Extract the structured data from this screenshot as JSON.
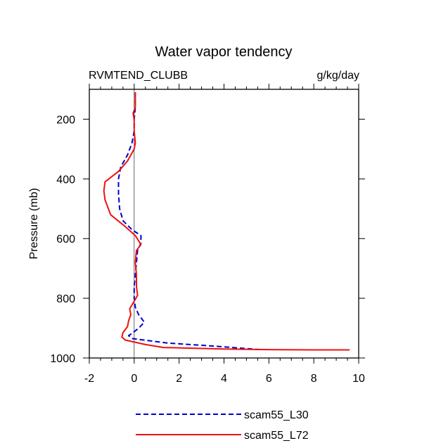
{
  "chart_data": {
    "type": "line",
    "title": "Water vapor tendency",
    "left_label": "RVMTEND_CLUBB",
    "right_label": "g/kg/day",
    "xlabel": "",
    "ylabel": "Pressure (mb)",
    "xlim": [
      -2,
      10
    ],
    "ylim": [
      1000,
      100
    ],
    "x_ticks": [
      -2,
      0,
      2,
      4,
      6,
      8,
      10
    ],
    "x_tick_labels": [
      "-2",
      "0",
      "2",
      "4",
      "6",
      "8",
      "10"
    ],
    "y_ticks": [
      200,
      400,
      600,
      800,
      1000
    ],
    "y_tick_labels": [
      "200",
      "400",
      "600",
      "800",
      "1000"
    ],
    "zero_line_x": 0,
    "series": [
      {
        "name": "scam55_L30",
        "color": "#0000cc",
        "style": "dashed",
        "points": [
          [
            0.05,
            110
          ],
          [
            0.05,
            160
          ],
          [
            0.0,
            200
          ],
          [
            0.0,
            240
          ],
          [
            -0.1,
            280
          ],
          [
            -0.3,
            320
          ],
          [
            -0.6,
            360
          ],
          [
            -0.7,
            400
          ],
          [
            -0.7,
            450
          ],
          [
            -0.65,
            500
          ],
          [
            -0.5,
            540
          ],
          [
            -0.1,
            570
          ],
          [
            0.3,
            590
          ],
          [
            0.3,
            615
          ],
          [
            0.15,
            640
          ],
          [
            0.1,
            680
          ],
          [
            0.05,
            720
          ],
          [
            0.0,
            760
          ],
          [
            0.0,
            800
          ],
          [
            0.05,
            830
          ],
          [
            0.2,
            855
          ],
          [
            0.45,
            880
          ],
          [
            0.2,
            900
          ],
          [
            -0.05,
            915
          ],
          [
            -0.25,
            925
          ],
          [
            -0.1,
            935
          ],
          [
            1.5,
            950
          ],
          [
            3.5,
            960
          ],
          [
            5.6,
            972
          ]
        ]
      },
      {
        "name": "scam55_L72",
        "color": "#ee1111",
        "style": "solid",
        "points": [
          [
            0.05,
            110
          ],
          [
            0.05,
            160
          ],
          [
            -0.05,
            180
          ],
          [
            0.0,
            200
          ],
          [
            0.0,
            240
          ],
          [
            0.05,
            280
          ],
          [
            0.0,
            300
          ],
          [
            -0.3,
            340
          ],
          [
            -0.7,
            375
          ],
          [
            -1.3,
            410
          ],
          [
            -1.35,
            440
          ],
          [
            -1.3,
            470
          ],
          [
            -1.05,
            520
          ],
          [
            -0.4,
            560
          ],
          [
            0.05,
            590
          ],
          [
            0.3,
            620
          ],
          [
            0.1,
            640
          ],
          [
            0.05,
            680
          ],
          [
            0.1,
            720
          ],
          [
            0.1,
            760
          ],
          [
            0.15,
            790
          ],
          [
            0.0,
            810
          ],
          [
            -0.2,
            835
          ],
          [
            -0.15,
            855
          ],
          [
            -0.25,
            875
          ],
          [
            -0.3,
            895
          ],
          [
            -0.5,
            915
          ],
          [
            -0.55,
            930
          ],
          [
            -0.4,
            940
          ],
          [
            0.5,
            955
          ],
          [
            1.3,
            965
          ],
          [
            4.0,
            970
          ],
          [
            6.0,
            972
          ],
          [
            8.0,
            973
          ],
          [
            9.6,
            973
          ]
        ]
      }
    ],
    "legend_position": "bottom"
  }
}
